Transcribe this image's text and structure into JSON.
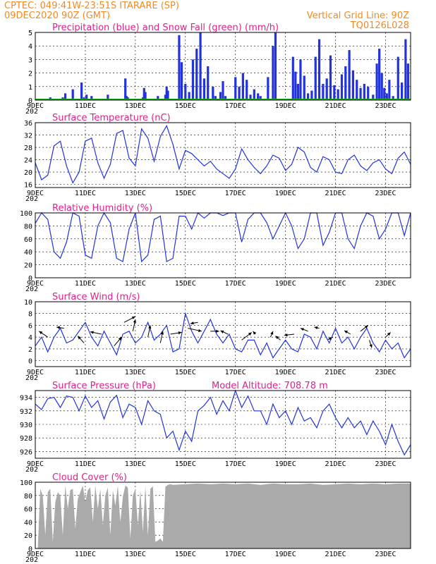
{
  "header": {
    "line1": "CPTEC:   049:41W-23:51S   ITARARE (SP)",
    "line2": "09DEC2020 90Z (GMT)",
    "right1": "Vertical Grid Line: 90Z",
    "right2": "TQ0126L028"
  },
  "x_ticks": [
    "9DEC",
    "11DEC",
    "13DEC",
    "15DEC",
    "17DEC",
    "19DEC",
    "21DEC",
    "23DEC"
  ],
  "year_fragment": "202",
  "chart_data": [
    {
      "id": "precip",
      "type": "bar",
      "title": "Precipitation (blue) and Snow Fall (green) (mm/h)",
      "ylim": [
        0,
        5
      ],
      "yticks": [
        0,
        1,
        2,
        3,
        4,
        5
      ],
      "xlim": [
        0,
        15
      ],
      "x": [
        0.3,
        0.6,
        1.1,
        1.2,
        1.5,
        1.85,
        1.95,
        2.05,
        2.15,
        2.25,
        2.9,
        3.5,
        3.6,
        3.65,
        3.7,
        4.3,
        4.35,
        4.4,
        4.9,
        5.2,
        5.25,
        5.3,
        5.75,
        5.85,
        6.0,
        6.15,
        6.3,
        6.45,
        6.6,
        6.75,
        6.9,
        7.1,
        7.2,
        7.4,
        7.5,
        7.6,
        8.0,
        8.15,
        8.3,
        8.45,
        8.6,
        8.75,
        8.9,
        9.0,
        9.3,
        9.5,
        9.6,
        10.3,
        10.4,
        10.5,
        10.6,
        10.75,
        10.9,
        11.05,
        11.2,
        11.35,
        11.5,
        11.65,
        11.8,
        11.95,
        12.1,
        12.25,
        12.4,
        12.55,
        12.7,
        12.85,
        13.0,
        13.15,
        13.3,
        13.5,
        13.65,
        13.75,
        13.85,
        13.95,
        14.05,
        14.15,
        14.3,
        14.5,
        14.65,
        14.8,
        14.9
      ],
      "values": [
        0.1,
        0.2,
        0.2,
        0.5,
        0.8,
        1.3,
        0.2,
        0.4,
        0.1,
        0.3,
        0.4,
        0.1,
        1.6,
        0.3,
        0.2,
        0.2,
        0.9,
        0.6,
        0.3,
        0.4,
        1.0,
        0.7,
        4.8,
        2.8,
        1.2,
        0.6,
        3.0,
        3.8,
        5.0,
        1.6,
        2.5,
        1.0,
        0.3,
        0.6,
        1.4,
        0.3,
        1.7,
        1.0,
        2.0,
        1.5,
        0.4,
        0.8,
        0.5,
        0.3,
        1.7,
        4.0,
        5.0,
        3.2,
        2.1,
        1.2,
        3.0,
        1.8,
        0.5,
        0.7,
        3.2,
        4.5,
        1.2,
        1.6,
        3.3,
        1.1,
        0.8,
        1.9,
        2.5,
        3.7,
        2.2,
        1.5,
        0.9,
        1.2,
        1.0,
        0.4,
        2.7,
        3.8,
        2.0,
        0.9,
        0.5,
        1.5,
        0.3,
        3.2,
        1.3,
        4.5,
        2.7
      ]
    },
    {
      "id": "temp",
      "type": "line",
      "title": "Surface Temperature (nC)",
      "ylim": [
        15,
        36
      ],
      "yticks": [
        16,
        20,
        24,
        28,
        32,
        36
      ],
      "xlim": [
        0,
        15
      ],
      "x": [
        0,
        0.25,
        0.5,
        0.75,
        1.0,
        1.25,
        1.5,
        1.75,
        2.0,
        2.25,
        2.5,
        2.75,
        3.0,
        3.25,
        3.5,
        3.75,
        4.0,
        4.25,
        4.5,
        4.75,
        5.0,
        5.25,
        5.5,
        5.75,
        6.0,
        6.25,
        6.5,
        6.75,
        7.0,
        7.25,
        7.5,
        7.75,
        8.0,
        8.25,
        8.5,
        8.75,
        9.0,
        9.25,
        9.5,
        9.75,
        10.0,
        10.25,
        10.5,
        10.75,
        11.0,
        11.25,
        11.5,
        11.75,
        12.0,
        12.25,
        12.5,
        12.75,
        13.0,
        13.25,
        13.5,
        13.75,
        14.0,
        14.25,
        14.5,
        14.75,
        15.0
      ],
      "values": [
        23.0,
        17.5,
        19.0,
        28.5,
        30.0,
        22.0,
        16.5,
        20.0,
        30.0,
        31.0,
        23.0,
        18.0,
        22.5,
        32.5,
        33.5,
        24.5,
        22.0,
        34.0,
        31.0,
        23.5,
        31.5,
        35.0,
        29.0,
        21.0,
        27.0,
        26.0,
        24.0,
        22.0,
        23.5,
        21.0,
        19.5,
        18.0,
        21.0,
        27.5,
        24.0,
        21.5,
        19.5,
        22.0,
        25.5,
        24.5,
        20.5,
        22.5,
        28.0,
        26.5,
        21.5,
        20.0,
        25.0,
        24.0,
        20.0,
        19.5,
        24.0,
        25.5,
        22.0,
        20.5,
        23.0,
        24.0,
        21.0,
        19.5,
        24.5,
        26.5,
        22.5
      ]
    },
    {
      "id": "rh",
      "type": "line",
      "title": "Relative Humidity (%)",
      "ylim": [
        0,
        100
      ],
      "yticks": [
        0,
        20,
        40,
        60,
        80,
        100
      ],
      "xlim": [
        0,
        15
      ],
      "x": [
        0,
        0.25,
        0.5,
        0.75,
        1.0,
        1.25,
        1.5,
        1.75,
        2.0,
        2.25,
        2.5,
        2.75,
        3.0,
        3.25,
        3.5,
        3.75,
        4.0,
        4.25,
        4.5,
        4.75,
        5.0,
        5.25,
        5.5,
        5.75,
        6.0,
        6.25,
        6.5,
        6.75,
        7.0,
        7.25,
        7.5,
        7.75,
        8.0,
        8.25,
        8.5,
        8.75,
        9.0,
        9.25,
        9.5,
        9.75,
        10.0,
        10.25,
        10.5,
        10.75,
        11.0,
        11.25,
        11.5,
        11.75,
        12.0,
        12.25,
        12.5,
        12.75,
        13.0,
        13.25,
        13.5,
        13.75,
        14.0,
        14.25,
        14.5,
        14.75,
        15.0
      ],
      "values": [
        84,
        100,
        90,
        40,
        30,
        55,
        100,
        95,
        35,
        30,
        80,
        100,
        85,
        30,
        25,
        75,
        100,
        25,
        35,
        90,
        95,
        25,
        30,
        95,
        95,
        75,
        100,
        92,
        100,
        100,
        96,
        100,
        100,
        55,
        90,
        100,
        100,
        85,
        60,
        80,
        100,
        80,
        45,
        60,
        100,
        100,
        50,
        70,
        100,
        100,
        60,
        45,
        80,
        100,
        95,
        60,
        75,
        100,
        100,
        65,
        100
      ]
    },
    {
      "id": "wind",
      "type": "line",
      "title": "Surface Wind (m/s)",
      "ylim": [
        -1,
        10
      ],
      "yticks": [
        0,
        2,
        4,
        6,
        8,
        10
      ],
      "xlim": [
        0,
        15
      ],
      "x": [
        0,
        0.25,
        0.5,
        0.75,
        1.0,
        1.25,
        1.5,
        1.75,
        2.0,
        2.25,
        2.5,
        2.75,
        3.0,
        3.25,
        3.5,
        3.75,
        4.0,
        4.25,
        4.5,
        4.75,
        5.0,
        5.25,
        5.5,
        5.75,
        6.0,
        6.25,
        6.5,
        6.75,
        7.0,
        7.25,
        7.5,
        7.75,
        8.0,
        8.25,
        8.5,
        8.75,
        9.0,
        9.25,
        9.5,
        9.75,
        10.0,
        10.25,
        10.5,
        10.75,
        11.0,
        11.25,
        11.5,
        11.75,
        12.0,
        12.25,
        12.5,
        12.75,
        13.0,
        13.25,
        13.5,
        13.75,
        14.0,
        14.25,
        14.5,
        14.75,
        15.0
      ],
      "values": [
        2.5,
        4.0,
        1.5,
        4.0,
        5.5,
        3.0,
        3.5,
        5.0,
        6.5,
        4.0,
        2.5,
        5.0,
        3.0,
        1.0,
        4.5,
        5.0,
        3.0,
        4.0,
        6.5,
        3.5,
        4.5,
        6.0,
        1.5,
        2.0,
        8.0,
        5.0,
        3.0,
        5.0,
        7.0,
        4.5,
        3.0,
        4.5,
        2.0,
        1.5,
        3.5,
        3.5,
        1.0,
        3.0,
        0.5,
        2.0,
        3.5,
        2.0,
        1.5,
        4.5,
        4.0,
        2.0,
        5.0,
        3.0,
        5.5,
        3.0,
        4.0,
        2.0,
        4.0,
        5.5,
        3.0,
        1.5,
        3.5,
        2.0,
        3.0,
        0.5,
        2.0
      ],
      "arrows_x": [
        0.5,
        1.15,
        1.95,
        2.65,
        3.15,
        3.55,
        3.9,
        4.5,
        5.0,
        5.4,
        6.1,
        6.5,
        7.0,
        7.7,
        8.25,
        8.8,
        9.4,
        9.8,
        10.35,
        10.9,
        11.35,
        11.9,
        12.6,
        13.0,
        13.35,
        14.0
      ],
      "arrows_y": [
        4.0,
        5.5,
        3.0,
        4.5,
        2.5,
        6.5,
        5.0,
        4.0,
        3.0,
        4.5,
        5.5,
        6.5,
        5.0,
        4.5,
        3.5,
        4.5,
        4.0,
        3.5,
        4.5,
        5.0,
        5.5,
        4.0,
        4.5,
        5.0,
        3.5,
        4.0
      ],
      "arrows_dx": [
        -0.35,
        -0.3,
        -0.25,
        -0.45,
        0.3,
        0.45,
        0.1,
        0.1,
        0.1,
        0.45,
        0.55,
        -0.3,
        0.35,
        -0.3,
        0.4,
        -0.1,
        0.1,
        -0.2,
        -0.4,
        -0.3,
        -0.2,
        -0.2,
        -0.25,
        0.3,
        0.1,
        0.2
      ],
      "arrows_dy": [
        1.0,
        0.2,
        1.2,
        0.4,
        1.5,
        1.0,
        2.0,
        2.0,
        2.0,
        0.3,
        -0.5,
        -0.2,
        0.0,
        0.6,
        1.3,
        0.5,
        1.0,
        0.7,
        -0.2,
        0.5,
        0.2,
        -0.4,
        0.6,
        1.0,
        -1.3,
        0.8
      ]
    },
    {
      "id": "pres",
      "type": "line",
      "title": "Surface Pressure (hPa)",
      "note": "Model Altitude: 708.78 m",
      "ylim": [
        925,
        935
      ],
      "yticks": [
        926,
        928,
        930,
        932,
        934
      ],
      "xlim": [
        0,
        15
      ],
      "x": [
        0,
        0.25,
        0.5,
        0.75,
        1.0,
        1.25,
        1.5,
        1.75,
        2.0,
        2.25,
        2.5,
        2.75,
        3.0,
        3.25,
        3.5,
        3.75,
        4.0,
        4.25,
        4.5,
        4.75,
        5.0,
        5.25,
        5.5,
        5.75,
        6.0,
        6.25,
        6.5,
        6.75,
        7.0,
        7.25,
        7.5,
        7.75,
        8.0,
        8.25,
        8.5,
        8.75,
        9.0,
        9.25,
        9.5,
        9.75,
        10.0,
        10.25,
        10.5,
        10.75,
        11.0,
        11.25,
        11.5,
        11.75,
        12.0,
        12.25,
        12.5,
        12.75,
        13.0,
        13.25,
        13.5,
        13.75,
        14.0,
        14.25,
        14.5,
        14.75,
        15.0
      ],
      "values": [
        933.0,
        932.2,
        933.8,
        934.0,
        932.5,
        934.2,
        934.0,
        932.0,
        934.2,
        932.5,
        933.5,
        930.8,
        933.3,
        934.3,
        931.0,
        933.0,
        932.5,
        930.0,
        933.5,
        932.0,
        931.5,
        928.0,
        929.0,
        926.2,
        929.0,
        927.5,
        932.0,
        932.8,
        934.0,
        931.5,
        933.5,
        932.0,
        935.0,
        932.5,
        934.2,
        932.0,
        932.0,
        930.0,
        933.0,
        931.0,
        932.0,
        930.0,
        932.5,
        930.5,
        931.0,
        929.5,
        932.0,
        933.0,
        931.0,
        929.5,
        931.0,
        929.5,
        930.5,
        928.5,
        930.5,
        929.0,
        927.0,
        930.0,
        927.5,
        925.5,
        927.0
      ]
    },
    {
      "id": "cloud",
      "type": "area",
      "title": "Cloud Cover (%)",
      "ylim": [
        0,
        100
      ],
      "yticks": [
        0,
        20,
        40,
        60,
        80,
        100
      ],
      "xlim": [
        0,
        15
      ],
      "x": [
        0,
        0.1,
        0.2,
        0.3,
        0.4,
        0.5,
        0.6,
        0.7,
        0.8,
        0.9,
        1.0,
        1.1,
        1.2,
        1.3,
        1.4,
        1.5,
        1.6,
        1.7,
        1.8,
        1.9,
        2.0,
        2.1,
        2.2,
        2.3,
        2.4,
        2.5,
        2.6,
        2.7,
        2.8,
        2.9,
        3.0,
        3.1,
        3.2,
        3.3,
        3.4,
        3.5,
        3.6,
        3.7,
        3.8,
        3.9,
        4.0,
        4.1,
        4.2,
        4.3,
        4.4,
        4.5,
        4.6,
        4.7,
        4.8,
        4.9,
        5.0,
        5.1,
        5.2,
        5.3,
        5.4,
        5.5,
        6.0,
        6.5,
        7.0,
        7.5,
        8.0,
        8.5,
        9.0,
        9.5,
        10.0,
        10.5,
        11.0,
        11.5,
        12.0,
        12.5,
        13.0,
        13.5,
        14.0,
        14.5,
        15.0
      ],
      "values": [
        0,
        0,
        90,
        80,
        20,
        85,
        90,
        10,
        70,
        85,
        80,
        20,
        95,
        60,
        88,
        90,
        30,
        75,
        85,
        95,
        70,
        88,
        92,
        40,
        95,
        60,
        90,
        35,
        80,
        92,
        20,
        88,
        65,
        95,
        40,
        78,
        95,
        92,
        15,
        80,
        90,
        35,
        88,
        25,
        95,
        20,
        90,
        94,
        10,
        12,
        15,
        10,
        93,
        96,
        97,
        96,
        97,
        98,
        97,
        98,
        97,
        98,
        96,
        98,
        97,
        97,
        98,
        96,
        97,
        98,
        97,
        98,
        97,
        98,
        98
      ]
    }
  ]
}
